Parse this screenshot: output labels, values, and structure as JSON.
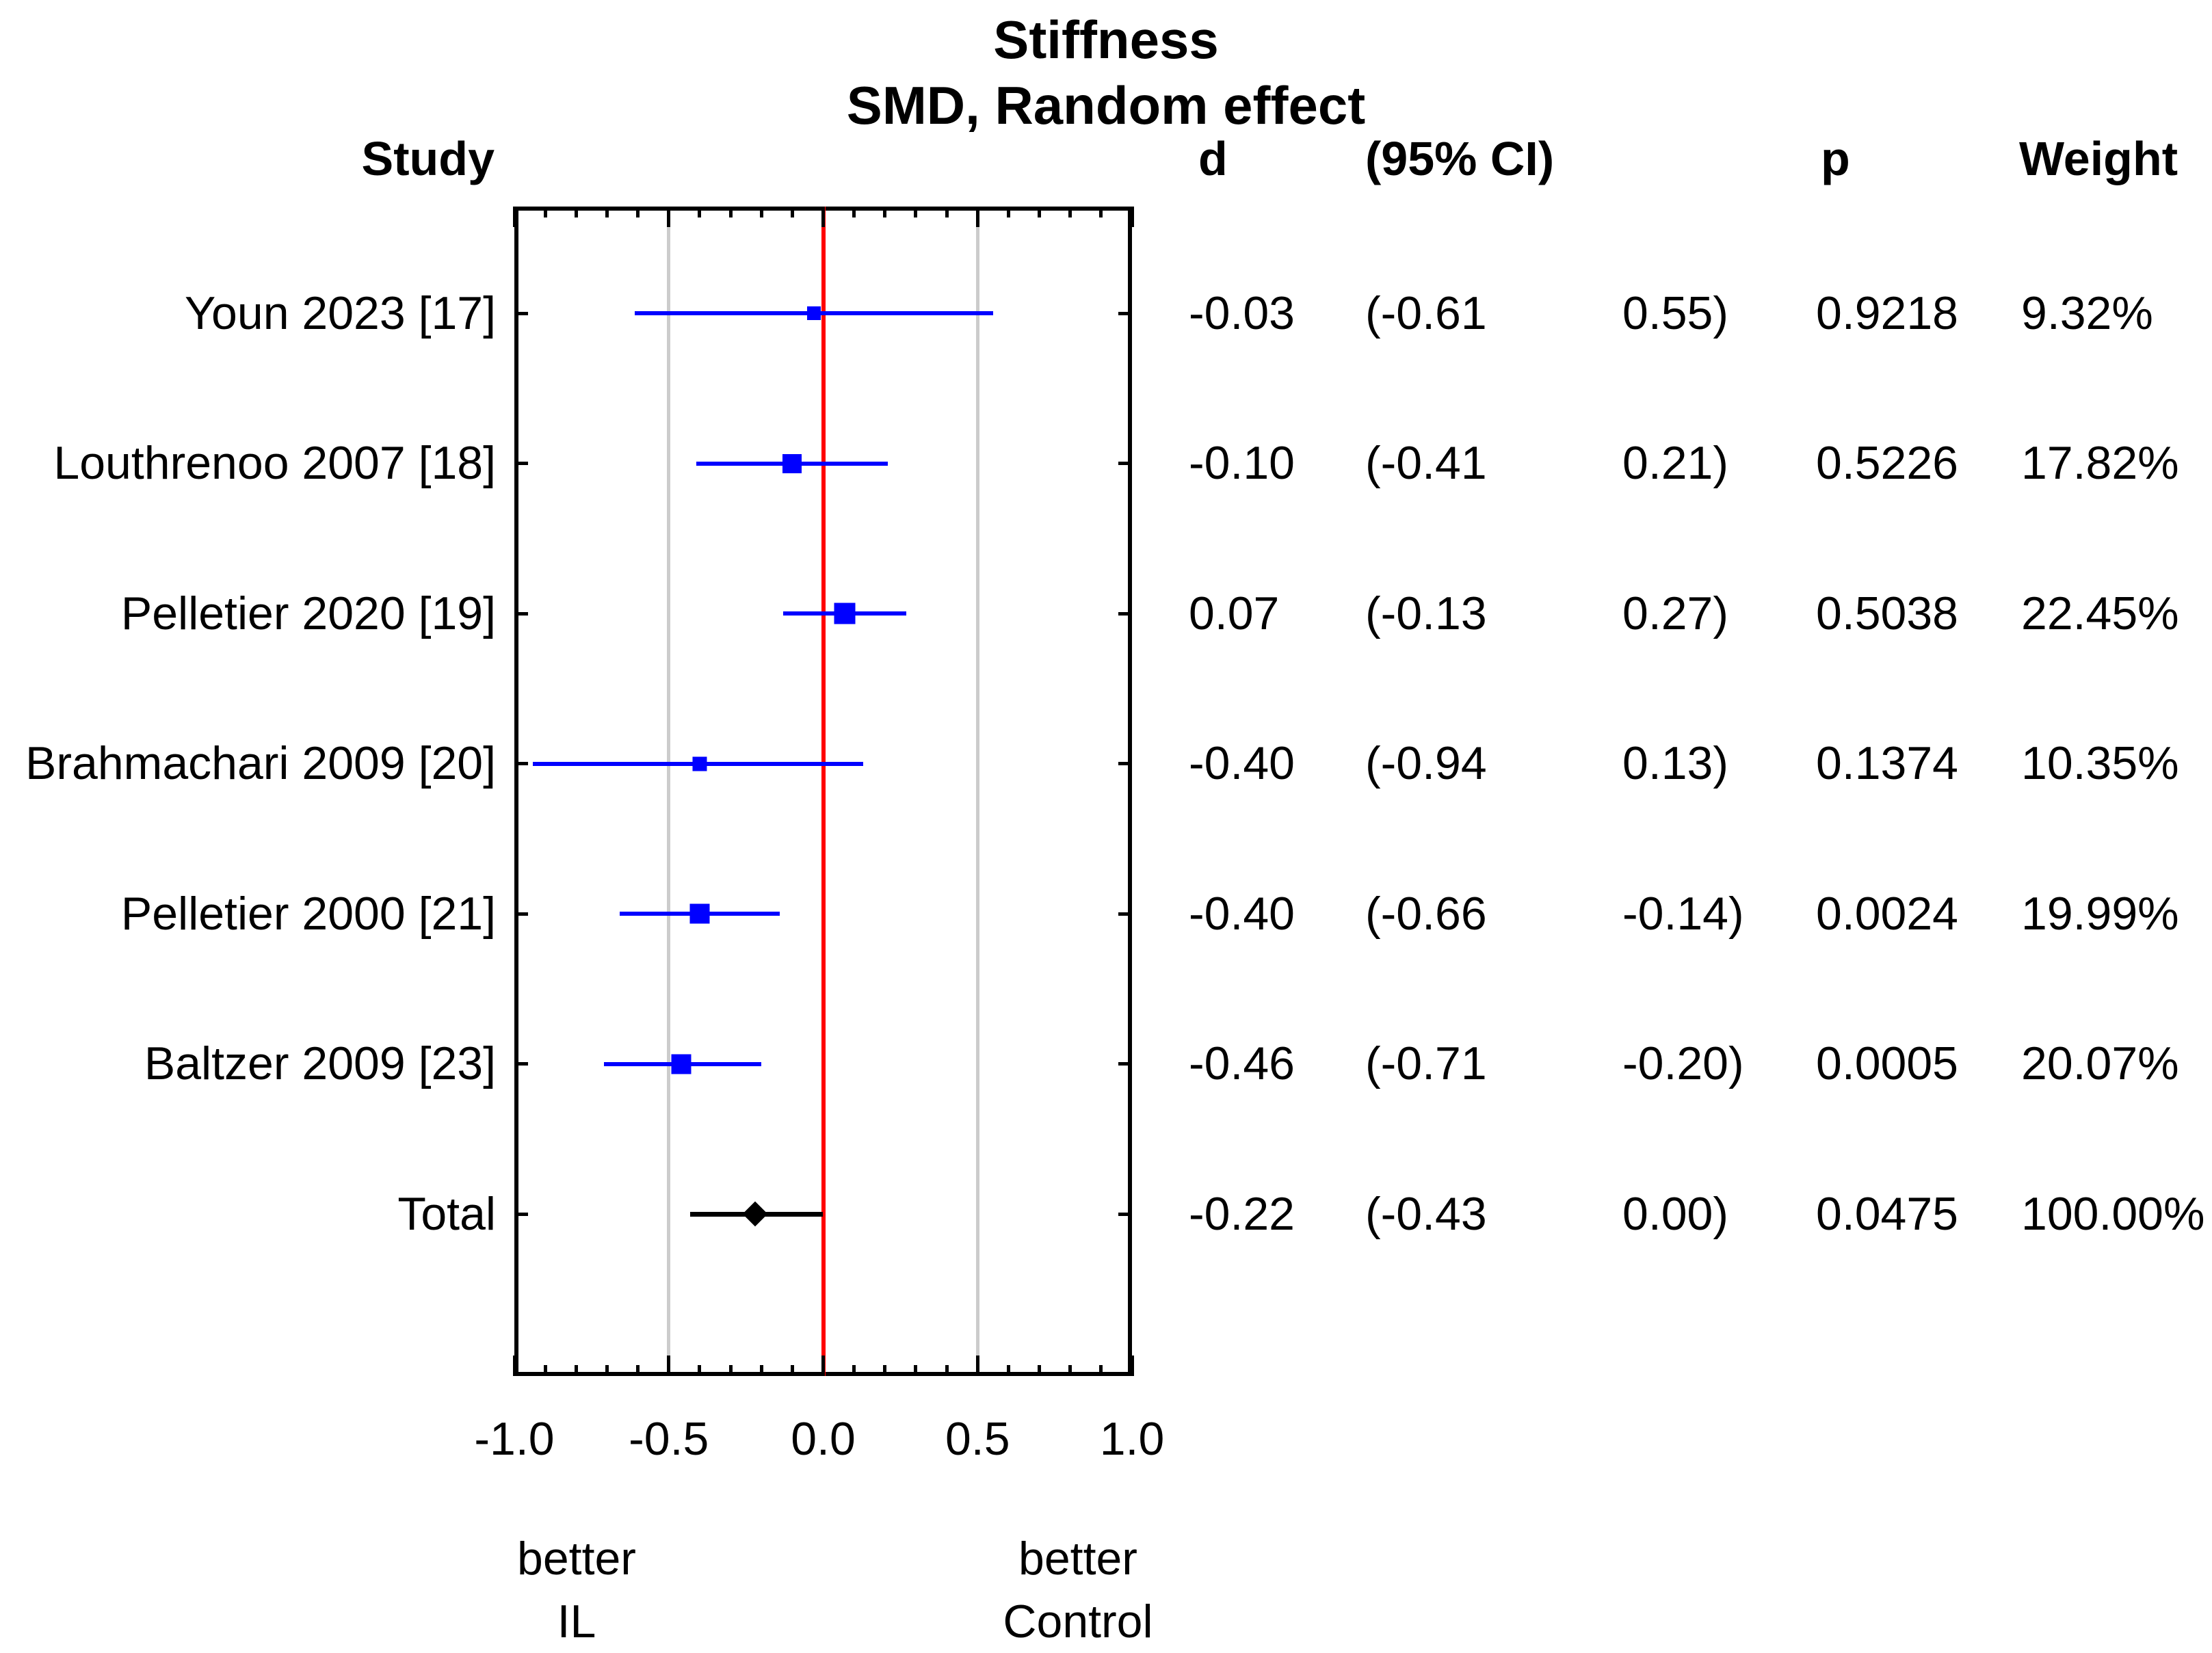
{
  "title": {
    "line1": "Stiffness",
    "line2": "SMD, Random effect"
  },
  "columns": {
    "study": "Study",
    "d": "d",
    "ci": "(95% CI)",
    "p": "p",
    "weight": "Weight"
  },
  "studies": [
    {
      "name": "Youn 2023 [17]",
      "d": "-0.03",
      "ci_lo": "(-0.61",
      "ci_hi": "0.55)",
      "p": "0.9218",
      "weight": "9.32%"
    },
    {
      "name": "Louthrenoo 2007 [18]",
      "d": "-0.10",
      "ci_lo": "(-0.41",
      "ci_hi": "0.21)",
      "p": "0.5226",
      "weight": "17.82%"
    },
    {
      "name": "Pelletier 2020 [19]",
      "d": "0.07",
      "ci_lo": "(-0.13",
      "ci_hi": "0.27)",
      "p": "0.5038",
      "weight": "22.45%"
    },
    {
      "name": "Brahmachari 2009 [20]",
      "d": "-0.40",
      "ci_lo": "(-0.94",
      "ci_hi": "0.13)",
      "p": "0.1374",
      "weight": "10.35%"
    },
    {
      "name": "Pelletier 2000 [21]",
      "d": "-0.40",
      "ci_lo": "(-0.66",
      "ci_hi": "-0.14)",
      "p": "0.0024",
      "weight": "19.99%"
    },
    {
      "name": "Baltzer 2009 [23]",
      "d": "-0.46",
      "ci_lo": "(-0.71",
      "ci_hi": "-0.20)",
      "p": "0.0005",
      "weight": "20.07%"
    },
    {
      "name": "Total",
      "d": "-0.22",
      "ci_lo": "(-0.43",
      "ci_hi": "0.00)",
      "p": "0.0475",
      "weight": "100.00%"
    }
  ],
  "footer": {
    "left_line1": "better",
    "left_line2": "IL",
    "right_line1": "better",
    "right_line2": "Control"
  },
  "colors": {
    "study_marker": "#0000FF",
    "total_marker": "#000000",
    "zero_line": "#FF0000",
    "gridline": "#CCCCCC",
    "frame": "#000000"
  },
  "chart_data": {
    "type": "forest",
    "title": "Stiffness",
    "subtitle": "SMD, Random effect",
    "effect_measure": "d",
    "model": "Random effect",
    "xlim": [
      -1.0,
      1.0
    ],
    "minor_tick_step": 0.1,
    "major_tick_step": 0.5,
    "gridlines": [
      -0.5,
      0.5
    ],
    "zero_line": 0.0,
    "grid_on": true,
    "x_ticks": [
      {
        "value": -1.0,
        "label": "-1.0"
      },
      {
        "value": -0.5,
        "label": "-0.5"
      },
      {
        "value": 0.0,
        "label": "0.0"
      },
      {
        "value": 0.5,
        "label": "0.5"
      },
      {
        "value": 1.0,
        "label": "1.0"
      }
    ],
    "direction_labels": [
      {
        "x": -0.8,
        "label": "better IL"
      },
      {
        "x": 0.82,
        "label": "better Control"
      }
    ],
    "series": [
      {
        "study": "Youn 2023 [17]",
        "d": -0.03,
        "ci_low": -0.61,
        "ci_high": 0.55,
        "p": 0.9218,
        "weight_pct": 9.32,
        "marker": "square"
      },
      {
        "study": "Louthrenoo 2007 [18]",
        "d": -0.1,
        "ci_low": -0.41,
        "ci_high": 0.21,
        "p": 0.5226,
        "weight_pct": 17.82,
        "marker": "square"
      },
      {
        "study": "Pelletier 2020 [19]",
        "d": 0.07,
        "ci_low": -0.13,
        "ci_high": 0.27,
        "p": 0.5038,
        "weight_pct": 22.45,
        "marker": "square"
      },
      {
        "study": "Brahmachari 2009 [20]",
        "d": -0.4,
        "ci_low": -0.94,
        "ci_high": 0.13,
        "p": 0.1374,
        "weight_pct": 10.35,
        "marker": "square"
      },
      {
        "study": "Pelletier 2000 [21]",
        "d": -0.4,
        "ci_low": -0.66,
        "ci_high": -0.14,
        "p": 0.0024,
        "weight_pct": 19.99,
        "marker": "square"
      },
      {
        "study": "Baltzer 2009 [23]",
        "d": -0.46,
        "ci_low": -0.71,
        "ci_high": -0.2,
        "p": 0.0005,
        "weight_pct": 20.07,
        "marker": "square"
      },
      {
        "study": "Total",
        "d": -0.22,
        "ci_low": -0.43,
        "ci_high": 0.0,
        "p": 0.0475,
        "weight_pct": 100.0,
        "marker": "diamond"
      }
    ]
  }
}
